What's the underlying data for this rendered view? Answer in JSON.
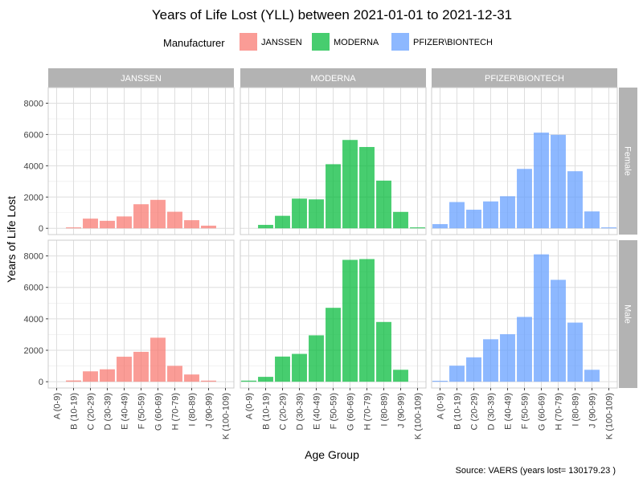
{
  "chart_data": {
    "type": "bar",
    "title": "Years of Life Lost (YLL) between 2021-01-01 to 2021-12-31",
    "xlabel": "Age Group",
    "ylabel": "Years of Life Lost",
    "caption": "Source: VAERS (years lost= 130179.23 )",
    "legend": {
      "title": "Manufacturer",
      "position": "top",
      "items": [
        {
          "label": "JANSSEN",
          "color": "#F8766D"
        },
        {
          "label": "MODERNA",
          "color": "#00BA38"
        },
        {
          "label": "PFIZER\\BIONTECH",
          "color": "#619CFF"
        }
      ]
    },
    "facet_columns": [
      "JANSSEN",
      "MODERNA",
      "PFIZER\\BIONTECH"
    ],
    "facet_rows": [
      "Female",
      "Male"
    ],
    "categories": [
      "A (0-9)",
      "B (10-19)",
      "C (20-29)",
      "D (30-39)",
      "E (40-49)",
      "F (50-59)",
      "G (60-69)",
      "H (70-79)",
      "I (80-89)",
      "J (90-99)",
      "K (100-109)"
    ],
    "ylim": [
      -400,
      9000
    ],
    "yticks": [
      0,
      2000,
      4000,
      6000,
      8000
    ],
    "grid": true,
    "series": [
      {
        "manufacturer": "JANSSEN",
        "sex": "Female",
        "values": [
          0,
          60,
          620,
          480,
          760,
          1540,
          1820,
          1060,
          520,
          170,
          0
        ]
      },
      {
        "manufacturer": "MODERNA",
        "sex": "Female",
        "values": [
          0,
          220,
          800,
          1900,
          1850,
          4100,
          5650,
          5200,
          3050,
          1050,
          60
        ]
      },
      {
        "manufacturer": "PFIZER\\BIONTECH",
        "sex": "Female",
        "values": [
          270,
          1680,
          1190,
          1720,
          2050,
          3800,
          6120,
          5980,
          3650,
          1080,
          60
        ]
      },
      {
        "manufacturer": "JANSSEN",
        "sex": "Male",
        "values": [
          0,
          80,
          660,
          790,
          1590,
          1900,
          2800,
          1010,
          460,
          70,
          0
        ]
      },
      {
        "manufacturer": "MODERNA",
        "sex": "Male",
        "values": [
          70,
          310,
          1600,
          1770,
          2950,
          4700,
          7750,
          7800,
          3800,
          760,
          0
        ]
      },
      {
        "manufacturer": "PFIZER\\BIONTECH",
        "sex": "Male",
        "values": [
          60,
          1020,
          1550,
          2700,
          3020,
          4120,
          8100,
          6480,
          3760,
          760,
          0
        ]
      }
    ]
  }
}
